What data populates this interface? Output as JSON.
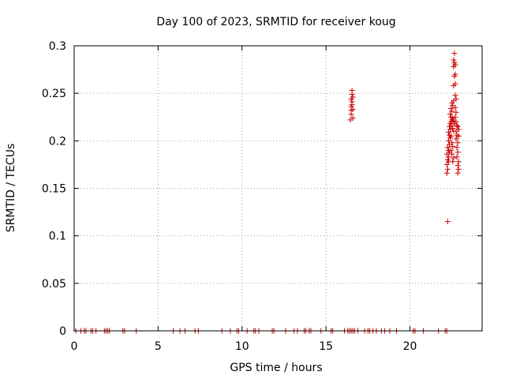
{
  "chart_data": {
    "type": "scatter",
    "title": "Day 100 of 2023, SRMTID for receiver koug",
    "xlabel": "GPS time / hours",
    "ylabel": "SRMTID / TECUs",
    "xlim": [
      0,
      24.3
    ],
    "ylim": [
      0,
      0.3
    ],
    "xticks": [
      0,
      5,
      10,
      15,
      20
    ],
    "yticks": [
      0,
      0.05,
      0.1,
      0.15,
      0.2,
      0.25,
      0.3
    ],
    "xtick_labels": [
      "0",
      "5",
      "10",
      "15",
      "20"
    ],
    "ytick_labels": [
      "0",
      "0.05",
      "0.1",
      "0.15",
      "0.2",
      "0.25",
      "0.3"
    ],
    "grid": true,
    "marker": "plus",
    "color": "#cc0000",
    "series": [
      {
        "points": [
          [
            0.1,
            0
          ],
          [
            0.4,
            0
          ],
          [
            0.6,
            0
          ],
          [
            0.7,
            0
          ],
          [
            1.0,
            0
          ],
          [
            1.1,
            0
          ],
          [
            1.3,
            0
          ],
          [
            1.8,
            0
          ],
          [
            1.9,
            0
          ],
          [
            2.0,
            0
          ],
          [
            2.1,
            0
          ],
          [
            2.9,
            0
          ],
          [
            3.0,
            0
          ],
          [
            3.7,
            0
          ],
          [
            5.9,
            0
          ],
          [
            6.3,
            0
          ],
          [
            6.6,
            0
          ],
          [
            7.2,
            0
          ],
          [
            7.4,
            0
          ],
          [
            8.8,
            0
          ],
          [
            9.3,
            0
          ],
          [
            9.7,
            0
          ],
          [
            9.8,
            0
          ],
          [
            10.3,
            0
          ],
          [
            10.7,
            0
          ],
          [
            10.8,
            0
          ],
          [
            11.0,
            0
          ],
          [
            11.8,
            0
          ],
          [
            11.9,
            0
          ],
          [
            12.6,
            0
          ],
          [
            13.1,
            0
          ],
          [
            13.3,
            0
          ],
          [
            13.7,
            0
          ],
          [
            13.8,
            0
          ],
          [
            14.0,
            0
          ],
          [
            14.1,
            0
          ],
          [
            14.7,
            0
          ],
          [
            15.3,
            0
          ],
          [
            15.4,
            0
          ],
          [
            16.1,
            0
          ],
          [
            16.3,
            0
          ],
          [
            16.4,
            0
          ],
          [
            16.5,
            0
          ],
          [
            16.6,
            0
          ],
          [
            16.7,
            0
          ],
          [
            16.9,
            0
          ],
          [
            17.3,
            0
          ],
          [
            17.5,
            0
          ],
          [
            17.6,
            0
          ],
          [
            17.8,
            0
          ],
          [
            18.0,
            0
          ],
          [
            18.3,
            0
          ],
          [
            18.5,
            0
          ],
          [
            18.8,
            0
          ],
          [
            19.2,
            0
          ],
          [
            20.2,
            0
          ],
          [
            20.3,
            0
          ],
          [
            20.8,
            0
          ],
          [
            21.7,
            0
          ],
          [
            22.1,
            0
          ],
          [
            22.2,
            0
          ],
          [
            16.45,
            0.222
          ],
          [
            16.5,
            0.228
          ],
          [
            16.5,
            0.232
          ],
          [
            16.5,
            0.236
          ],
          [
            16.55,
            0.238
          ],
          [
            16.55,
            0.241
          ],
          [
            16.5,
            0.244
          ],
          [
            16.6,
            0.246
          ],
          [
            16.55,
            0.249
          ],
          [
            16.55,
            0.253
          ],
          [
            16.6,
            0.224
          ],
          [
            16.6,
            0.233
          ],
          [
            22.25,
            0.115
          ],
          [
            22.2,
            0.166
          ],
          [
            22.25,
            0.17
          ],
          [
            22.2,
            0.175
          ],
          [
            22.3,
            0.178
          ],
          [
            22.25,
            0.18
          ],
          [
            22.3,
            0.183
          ],
          [
            22.2,
            0.186
          ],
          [
            22.35,
            0.188
          ],
          [
            22.3,
            0.19
          ],
          [
            22.25,
            0.193
          ],
          [
            22.35,
            0.196
          ],
          [
            22.3,
            0.2
          ],
          [
            22.4,
            0.203
          ],
          [
            22.35,
            0.206
          ],
          [
            22.3,
            0.209
          ],
          [
            22.4,
            0.212
          ],
          [
            22.35,
            0.215
          ],
          [
            22.4,
            0.218
          ],
          [
            22.45,
            0.22
          ],
          [
            22.5,
            0.222
          ],
          [
            22.45,
            0.225
          ],
          [
            22.4,
            0.228
          ],
          [
            22.5,
            0.231
          ],
          [
            22.45,
            0.234
          ],
          [
            22.55,
            0.237
          ],
          [
            22.5,
            0.24
          ],
          [
            22.6,
            0.242
          ],
          [
            22.5,
            0.216
          ],
          [
            22.55,
            0.213
          ],
          [
            22.6,
            0.21
          ],
          [
            22.45,
            0.205
          ],
          [
            22.5,
            0.198
          ],
          [
            22.55,
            0.194
          ],
          [
            22.45,
            0.19
          ],
          [
            22.5,
            0.186
          ],
          [
            22.6,
            0.182
          ],
          [
            22.55,
            0.178
          ],
          [
            22.65,
            0.218
          ],
          [
            22.6,
            0.221
          ],
          [
            22.55,
            0.224
          ],
          [
            22.6,
            0.258
          ],
          [
            22.65,
            0.268
          ],
          [
            22.6,
            0.278
          ],
          [
            22.65,
            0.282
          ],
          [
            22.6,
            0.285
          ],
          [
            22.7,
            0.28
          ],
          [
            22.65,
            0.292
          ],
          [
            22.7,
            0.27
          ],
          [
            22.7,
            0.26
          ],
          [
            22.7,
            0.248
          ],
          [
            22.75,
            0.244
          ],
          [
            22.7,
            0.235
          ],
          [
            22.75,
            0.23
          ],
          [
            22.7,
            0.225
          ],
          [
            22.75,
            0.22
          ],
          [
            22.8,
            0.216
          ],
          [
            22.75,
            0.21
          ],
          [
            22.8,
            0.206
          ],
          [
            22.75,
            0.202
          ],
          [
            22.85,
            0.198
          ],
          [
            22.8,
            0.193
          ],
          [
            22.85,
            0.188
          ],
          [
            22.8,
            0.183
          ],
          [
            22.9,
            0.178
          ],
          [
            22.85,
            0.174
          ],
          [
            22.9,
            0.17
          ],
          [
            22.85,
            0.166
          ],
          [
            22.9,
            0.212
          ],
          [
            22.9,
            0.205
          ],
          [
            22.85,
            0.215
          ]
        ]
      }
    ]
  }
}
